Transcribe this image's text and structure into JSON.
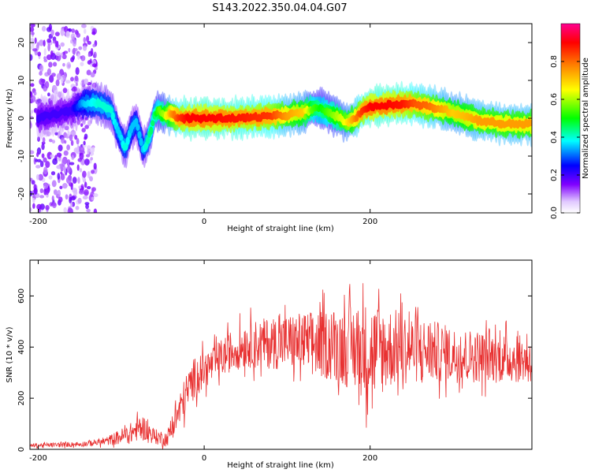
{
  "title": "S143.2022.350.04.04.G07",
  "chart_data": [
    {
      "type": "heatmap",
      "xlabel": "Height of straight line (km)",
      "ylabel": "Frequency (Hz)",
      "xlim": [
        -210,
        395
      ],
      "ylim": [
        -25,
        25
      ],
      "x_ticks": [
        -200,
        0,
        200
      ],
      "y_ticks": [
        20,
        10,
        0,
        -10,
        -20
      ],
      "colorbar": {
        "label": "Normalized spectral amplitude",
        "range": [
          0,
          1
        ],
        "ticks": [
          "0.0",
          "0.2",
          "0.4",
          "0.6",
          "0.8"
        ]
      },
      "colors": [
        "#ffffff",
        "#e6ccff",
        "#8000ff",
        "#0000ff",
        "#00ffff",
        "#00ff00",
        "#ffff00",
        "#ff8000",
        "#ff0000",
        "#ff0090"
      ],
      "noise_region": [
        -210,
        -130
      ],
      "ridge_line": {
        "x": [
          -200,
          -160,
          -145,
          -128,
          -112,
          -103,
          -95,
          -88,
          -82,
          -78,
          -74,
          -70,
          -65,
          -60,
          -55,
          -48,
          -40,
          -30,
          -20,
          0,
          40,
          80,
          100,
          120,
          130,
          140,
          150,
          160,
          170,
          180,
          190,
          200,
          220,
          240,
          255,
          270,
          285,
          300,
          315,
          330,
          345,
          360,
          395
        ],
        "y": [
          0,
          2,
          4,
          4,
          2,
          -4,
          -8,
          -3,
          -1,
          -4,
          -8,
          -7,
          -4,
          1,
          2,
          1,
          1,
          0,
          0,
          0,
          0,
          0.5,
          0.8,
          1.5,
          2.5,
          2.5,
          1.5,
          0.5,
          -1,
          -0.5,
          2,
          3,
          3.5,
          3.8,
          3.8,
          3,
          2.5,
          1.5,
          0.5,
          -0.5,
          -1,
          -1.5,
          -1.5
        ],
        "amplitude": [
          0.2,
          0.2,
          0.35,
          0.4,
          0.4,
          0.35,
          0.4,
          0.35,
          0.35,
          0.35,
          0.35,
          0.4,
          0.45,
          0.45,
          0.55,
          0.6,
          0.75,
          0.85,
          0.9,
          0.9,
          0.88,
          0.85,
          0.75,
          0.7,
          0.55,
          0.5,
          0.55,
          0.6,
          0.65,
          0.75,
          0.85,
          0.9,
          0.9,
          0.88,
          0.82,
          0.8,
          0.75,
          0.7,
          0.72,
          0.75,
          0.75,
          0.75,
          0.75
        ]
      }
    },
    {
      "type": "line",
      "xlabel": "Height of straight line (km)",
      "ylabel": "SNR (10 * v/v)",
      "xlim": [
        -210,
        395
      ],
      "ylim": [
        0,
        740
      ],
      "x_ticks": [
        -200,
        0,
        200
      ],
      "y_ticks": [
        0,
        200,
        400,
        600
      ],
      "color": "#e83030",
      "envelope": {
        "x": [
          -210,
          -150,
          -120,
          -90,
          -75,
          -60,
          -45,
          -30,
          -20,
          -10,
          10,
          30,
          50,
          100,
          150,
          180,
          200,
          230,
          260,
          300,
          350,
          395
        ],
        "mean": [
          15,
          20,
          30,
          60,
          90,
          50,
          40,
          150,
          230,
          290,
          330,
          380,
          410,
          420,
          410,
          400,
          380,
          400,
          390,
          370,
          360,
          350
        ],
        "spread": [
          8,
          10,
          15,
          40,
          50,
          30,
          30,
          70,
          80,
          80,
          70,
          80,
          90,
          110,
          140,
          170,
          200,
          150,
          130,
          110,
          100,
          90
        ]
      }
    }
  ]
}
